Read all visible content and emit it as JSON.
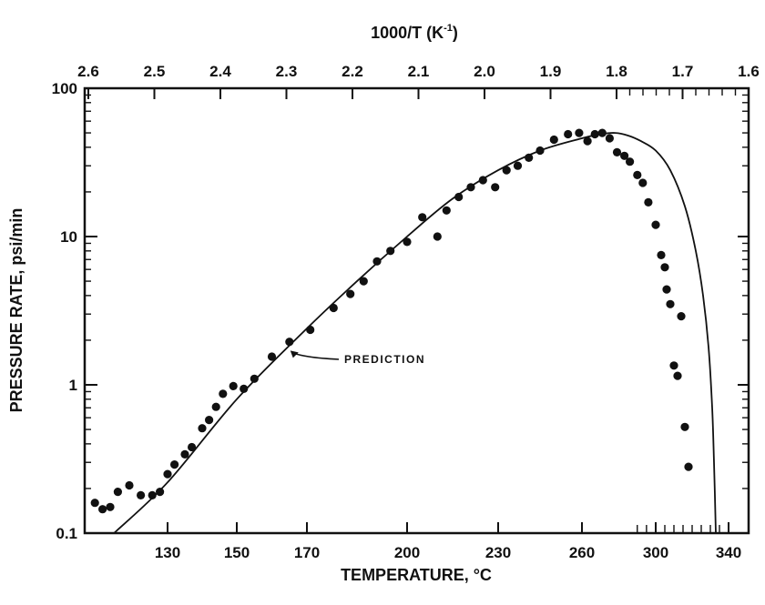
{
  "chart_data": {
    "type": "scatter",
    "title": "",
    "xlabel": "TEMPERATURE, °C",
    "ylabel": "PRESSURE RATE, psi/min",
    "x2label": "1000/T (K⁻¹)",
    "x2label_base": "1000/T (K",
    "x2label_exp": "-1",
    "x2label_close": ")",
    "yscale": "log",
    "xlim": [
      110,
      345
    ],
    "ylim": [
      0.1,
      100
    ],
    "grid": false,
    "x_ticks": [
      {
        "value": 130,
        "label": "130"
      },
      {
        "value": 150,
        "label": "150"
      },
      {
        "value": 170,
        "label": "170"
      },
      {
        "value": 200,
        "label": "200"
      },
      {
        "value": 230,
        "label": "230"
      },
      {
        "value": 260,
        "label": "260"
      },
      {
        "value": 300,
        "label": "300"
      },
      {
        "value": 340,
        "label": "340"
      }
    ],
    "top_ticks": [
      {
        "value": 2.6,
        "label": "2.6"
      },
      {
        "value": 2.5,
        "label": "2.5"
      },
      {
        "value": 2.4,
        "label": "2.4"
      },
      {
        "value": 2.3,
        "label": "2.3"
      },
      {
        "value": 2.2,
        "label": "2.2"
      },
      {
        "value": 2.1,
        "label": "2.1"
      },
      {
        "value": 2.0,
        "label": "2.0"
      },
      {
        "value": 1.9,
        "label": "1.9"
      },
      {
        "value": 1.8,
        "label": "1.8"
      },
      {
        "value": 1.7,
        "label": "1.7"
      },
      {
        "value": 1.6,
        "label": "1.6"
      }
    ],
    "y_ticks": [
      {
        "value": 0.1,
        "label": "0.1"
      },
      {
        "value": 1,
        "label": "1"
      },
      {
        "value": 10,
        "label": "10"
      },
      {
        "value": 100,
        "label": "100"
      }
    ],
    "series": [
      {
        "name": "",
        "kind": "points",
        "points": [
          [
            111,
            0.16
          ],
          [
            113,
            0.145
          ],
          [
            115,
            0.15
          ],
          [
            117,
            0.19
          ],
          [
            120,
            0.21
          ],
          [
            123,
            0.18
          ],
          [
            126,
            0.18
          ],
          [
            128,
            0.19
          ],
          [
            130,
            0.25
          ],
          [
            132,
            0.29
          ],
          [
            135,
            0.34
          ],
          [
            137,
            0.38
          ],
          [
            140,
            0.51
          ],
          [
            142,
            0.58
          ],
          [
            144,
            0.71
          ],
          [
            146,
            0.87
          ],
          [
            149,
            0.98
          ],
          [
            152,
            0.94
          ],
          [
            155,
            1.1
          ],
          [
            160,
            1.55
          ],
          [
            165,
            1.95
          ],
          [
            171,
            2.35
          ],
          [
            178,
            3.3
          ],
          [
            183,
            4.1
          ],
          [
            187,
            5.0
          ],
          [
            191,
            6.8
          ],
          [
            195,
            8.0
          ],
          [
            200,
            9.2
          ],
          [
            205,
            13.5
          ],
          [
            210,
            10.0
          ],
          [
            213,
            15.0
          ],
          [
            217,
            18.5
          ],
          [
            221,
            21.5
          ],
          [
            225,
            24.0
          ],
          [
            229,
            21.5
          ],
          [
            233,
            28.0
          ],
          [
            237,
            30.0
          ],
          [
            241,
            34.0
          ],
          [
            245,
            38.0
          ],
          [
            250,
            45.0
          ],
          [
            255,
            49.0
          ],
          [
            259,
            50.0
          ],
          [
            263,
            44.0
          ],
          [
            267,
            49.0
          ],
          [
            271,
            50.0
          ],
          [
            275,
            46.0
          ],
          [
            279,
            37.0
          ],
          [
            283,
            35.0
          ],
          [
            286,
            32.0
          ],
          [
            290,
            26.0
          ],
          [
            293,
            23.0
          ],
          [
            296,
            17.0
          ],
          [
            300,
            12.0
          ],
          [
            303,
            7.5
          ],
          [
            305,
            6.2
          ],
          [
            306,
            4.4
          ],
          [
            308,
            3.5
          ],
          [
            310,
            1.35
          ],
          [
            312,
            1.15
          ],
          [
            314,
            2.9
          ],
          [
            316,
            0.52
          ],
          [
            318,
            0.28
          ]
        ]
      },
      {
        "name": "PREDICTION",
        "kind": "line",
        "points": [
          [
            116,
            0.1
          ],
          [
            130,
            0.22
          ],
          [
            150,
            0.8
          ],
          [
            170,
            2.4
          ],
          [
            185,
            5.0
          ],
          [
            200,
            10.0
          ],
          [
            215,
            18.0
          ],
          [
            230,
            28.0
          ],
          [
            245,
            38.0
          ],
          [
            260,
            46.0
          ],
          [
            270,
            49.0
          ],
          [
            278,
            50.0
          ],
          [
            285,
            48.0
          ],
          [
            292,
            44.0
          ],
          [
            300,
            38.0
          ],
          [
            308,
            28.0
          ],
          [
            316,
            16.0
          ],
          [
            322,
            8.0
          ],
          [
            326,
            4.0
          ],
          [
            329,
            1.8
          ],
          [
            331,
            0.7
          ],
          [
            332,
            0.3
          ],
          [
            333,
            0.1
          ]
        ]
      }
    ],
    "annotations": [
      {
        "text": "PREDICTION",
        "x": 165,
        "y": 1.7
      }
    ]
  }
}
